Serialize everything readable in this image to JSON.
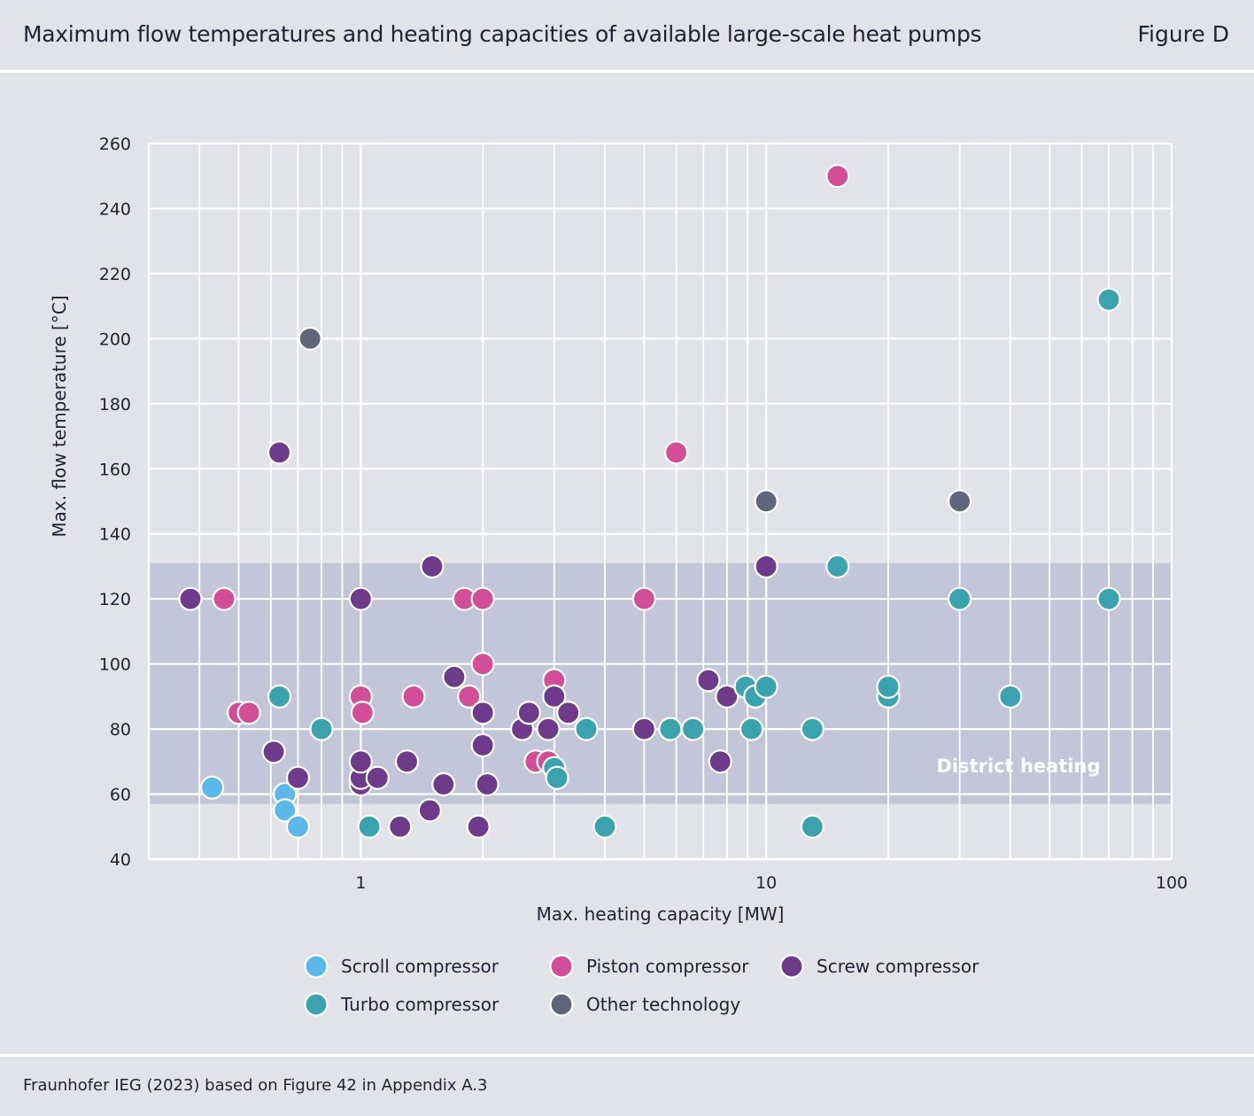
{
  "header": {
    "title": "Maximum flow temperatures and heating capacities of available large-scale heat pumps",
    "figure_label": "Figure D"
  },
  "footer": {
    "source": "Fraunhofer IEG (2023) based on Figure 42 in Appendix A.3"
  },
  "colors": {
    "scroll": "#5bb8e8",
    "piston": "#d24f98",
    "screw": "#6e3a8a",
    "turbo": "#3aa3ad",
    "other": "#60667a",
    "band": "#c3c6d9",
    "grid": "#ffffff"
  },
  "chart_data": {
    "type": "scatter",
    "xscale": "log",
    "xlim": [
      0.3,
      100
    ],
    "ylim": [
      40,
      260
    ],
    "xlabel": "Max. heating capacity [MW]",
    "ylabel": "Max. flow temperature [°C]",
    "x_tick_labels": [
      {
        "value": 1,
        "label": "1"
      },
      {
        "value": 10,
        "label": "10"
      },
      {
        "value": 100,
        "label": "100"
      }
    ],
    "y_ticks": [
      40,
      60,
      80,
      100,
      120,
      140,
      160,
      180,
      200,
      220,
      240,
      260
    ],
    "band": {
      "label": "District heating",
      "y_range": [
        57,
        131
      ]
    },
    "series": [
      {
        "name": "Scroll compressor",
        "key": "scroll",
        "points": [
          [
            0.43,
            62
          ],
          [
            0.65,
            60
          ],
          [
            0.65,
            55
          ],
          [
            0.7,
            50
          ]
        ]
      },
      {
        "name": "Piston compressor",
        "key": "piston",
        "points": [
          [
            0.46,
            120
          ],
          [
            0.5,
            85
          ],
          [
            0.53,
            85
          ],
          [
            1.0,
            90
          ],
          [
            1.01,
            85
          ],
          [
            1.35,
            90
          ],
          [
            1.8,
            120
          ],
          [
            2.0,
            120
          ],
          [
            1.85,
            90
          ],
          [
            2.0,
            100
          ],
          [
            2.7,
            70
          ],
          [
            2.9,
            70
          ],
          [
            3.0,
            95
          ],
          [
            5.0,
            120
          ],
          [
            6.0,
            165
          ],
          [
            15,
            250
          ]
        ]
      },
      {
        "name": "Screw compressor",
        "key": "screw",
        "points": [
          [
            0.38,
            120
          ],
          [
            0.61,
            73
          ],
          [
            0.63,
            165
          ],
          [
            0.7,
            65
          ],
          [
            1.0,
            120
          ],
          [
            1.0,
            63
          ],
          [
            1.0,
            65
          ],
          [
            1.0,
            70
          ],
          [
            1.1,
            65
          ],
          [
            1.25,
            50
          ],
          [
            1.3,
            70
          ],
          [
            1.48,
            55
          ],
          [
            1.5,
            130
          ],
          [
            1.6,
            63
          ],
          [
            1.7,
            96
          ],
          [
            1.95,
            50
          ],
          [
            2.0,
            85
          ],
          [
            2.0,
            75
          ],
          [
            2.05,
            63
          ],
          [
            2.5,
            80
          ],
          [
            2.6,
            85
          ],
          [
            2.9,
            80
          ],
          [
            3.0,
            90
          ],
          [
            3.25,
            85
          ],
          [
            5.0,
            80
          ],
          [
            7.2,
            95
          ],
          [
            7.7,
            70
          ],
          [
            8.0,
            90
          ],
          [
            10,
            130
          ]
        ]
      },
      {
        "name": "Turbo compressor",
        "key": "turbo",
        "points": [
          [
            0.63,
            90
          ],
          [
            0.8,
            80
          ],
          [
            1.05,
            50
          ],
          [
            3.0,
            68
          ],
          [
            3.05,
            65
          ],
          [
            3.6,
            80
          ],
          [
            4.0,
            50
          ],
          [
            5.8,
            80
          ],
          [
            6.6,
            80
          ],
          [
            8.9,
            93
          ],
          [
            9.4,
            90
          ],
          [
            9.2,
            80
          ],
          [
            10,
            93
          ],
          [
            13,
            80
          ],
          [
            13,
            50
          ],
          [
            15,
            130
          ],
          [
            20,
            90
          ],
          [
            20,
            93
          ],
          [
            30,
            120
          ],
          [
            40,
            90
          ],
          [
            70,
            212
          ],
          [
            70,
            120
          ]
        ]
      },
      {
        "name": "Other technology",
        "key": "other",
        "points": [
          [
            0.75,
            200
          ],
          [
            10,
            150
          ],
          [
            30,
            150
          ]
        ]
      }
    ],
    "legend": [
      {
        "label": "Scroll compressor",
        "key": "scroll"
      },
      {
        "label": "Piston compressor",
        "key": "piston"
      },
      {
        "label": "Screw compressor",
        "key": "screw"
      },
      {
        "label": "Turbo compressor",
        "key": "turbo"
      },
      {
        "label": "Other technology",
        "key": "other"
      }
    ]
  }
}
